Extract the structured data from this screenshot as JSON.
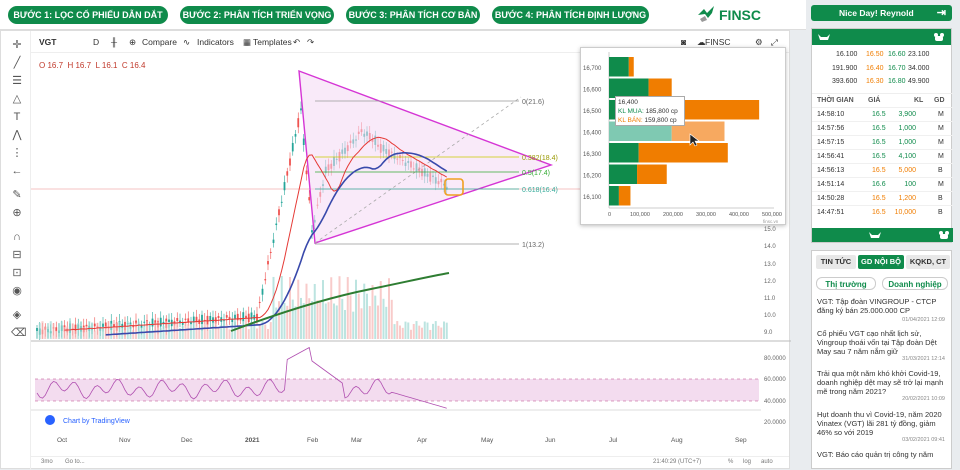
{
  "steps": [
    {
      "label": "BƯỚC 1: LỌC CỔ PHIẾU DẪN DẮT"
    },
    {
      "label": "BƯỚC 2: PHÂN TÍCH TRIỂN VỌNG"
    },
    {
      "label": "BƯỚC 3: PHÂN TÍCH CƠ BẢN"
    },
    {
      "label": "BƯỚC 4: PHÂN TÍCH ĐỊNH LƯỢNG"
    }
  ],
  "brand": {
    "name": "FINSC"
  },
  "toolbar": {
    "symbol": "VGT",
    "interval": "D",
    "compare": "Compare",
    "indicators": "Indicators",
    "templates": "Templates",
    "watermark": "FINSC"
  },
  "ohlc": {
    "o": "O 16.7",
    "h": "H 16.7",
    "l": "L 16.1",
    "c": "C 16.4"
  },
  "fib": [
    {
      "label": "0(21.6)"
    },
    {
      "label": "0.382(18.4)"
    },
    {
      "label": "0.5(17.4)"
    },
    {
      "label": "0.618(16.4)"
    },
    {
      "label": "1(13.2)"
    }
  ],
  "price_axis": [
    "15.0",
    "14.0",
    "13.0",
    "12.0",
    "11.0",
    "10.0",
    "9.0"
  ],
  "rsi_axis": [
    "80.0000",
    "60.0000",
    "40.0000",
    "20.0000"
  ],
  "months": [
    "Oct",
    "Nov",
    "Dec",
    "2021",
    "Feb",
    "Mar",
    "Apr",
    "May",
    "Jun",
    "Jul",
    "Aug",
    "Sep"
  ],
  "bottom": {
    "range": "3mo",
    "goto": "Go to...",
    "time": "21:40:29 (UTC+7)",
    "pct": "%",
    "log": "log",
    "auto": "auto",
    "credit": "Chart by TradingView"
  },
  "volume_profile": {
    "prices": [
      "16,700",
      "16,600",
      "16,500",
      "16,400",
      "16,300",
      "16,200",
      "16,100"
    ],
    "x_ticks": [
      "0",
      "100,000",
      "200,000",
      "300,000",
      "400,000",
      "500,000"
    ],
    "buy": [
      60000,
      120000,
      95000,
      190000,
      90000,
      85000,
      30000
    ],
    "sell": [
      15000,
      70000,
      360000,
      160000,
      270000,
      90000,
      35000
    ],
    "tooltip": {
      "price": "16,400",
      "buy_label": "KL MUA:",
      "buy": "185,800 cp",
      "sell_label": "KL BÁN:",
      "sell": "159,800 cp"
    }
  },
  "greeting": "Nice Day! Reynold",
  "orderbook": [
    {
      "bvol": "16.100",
      "bprice": "16.50",
      "sprice": "16.60",
      "svol": "23.100"
    },
    {
      "bvol": "191.900",
      "bprice": "16.40",
      "sprice": "16.70",
      "svol": "34.000"
    },
    {
      "bvol": "393.600",
      "bprice": "16.30",
      "sprice": "16.80",
      "svol": "49.900"
    }
  ],
  "trades_header": {
    "time": "THỜI GIAN",
    "price": "GIÁ",
    "vol": "KL",
    "side": "GD"
  },
  "trades": [
    {
      "time": "14:58:10",
      "price": "16.5",
      "vol": "3,900",
      "side": "M",
      "c": "g"
    },
    {
      "time": "14:57:56",
      "price": "16.5",
      "vol": "1,000",
      "side": "M",
      "c": "g"
    },
    {
      "time": "14:57:15",
      "price": "16.5",
      "vol": "1,000",
      "side": "M",
      "c": "g"
    },
    {
      "time": "14:56:41",
      "price": "16.5",
      "vol": "4,100",
      "side": "M",
      "c": "g"
    },
    {
      "time": "14:56:13",
      "price": "16.5",
      "vol": "5,000",
      "side": "B",
      "c": "o"
    },
    {
      "time": "14:51:14",
      "price": "16.6",
      "vol": "100",
      "side": "M",
      "c": "g"
    },
    {
      "time": "14:50:28",
      "price": "16.5",
      "vol": "1,200",
      "side": "B",
      "c": "o"
    },
    {
      "time": "14:47:51",
      "price": "16.5",
      "vol": "10,000",
      "side": "B",
      "c": "o"
    }
  ],
  "news_tabs": {
    "t1": "TIN TỨC",
    "t2": "GD NỘI BỘ",
    "t3": "KQKD, CT"
  },
  "news_sub": {
    "s1": "Thị trường",
    "s2": "Doanh nghiệp"
  },
  "news": [
    {
      "title": "VGT: Tập đoàn VINGROUP - CTCP đăng ký bán 25.000.000 CP",
      "date": "01/04/2021 12:09"
    },
    {
      "title": "Cổ phiếu VGT cạo nhất lịch sử, Vingroup thoái vốn tại Tập đoàn Dệt May sau 7 năm nắm giữ",
      "date": "31/03/2021 12:14"
    },
    {
      "title": "Trải qua một năm khó khởi Covid-19, doanh nghiệp dệt may sẽ trở lại mạnh mẽ trong năm 2021?",
      "date": "20/02/2021 10:09"
    },
    {
      "title": "Hụt doanh thu vì Covid-19, năm 2020 Vinatex (VGT) lãi 281 tỷ đồng, giảm 46% so với 2019",
      "date": "03/02/2021 09:41"
    },
    {
      "title": "VGT: Báo cáo quản trị công ty năm",
      "date": ""
    }
  ]
}
